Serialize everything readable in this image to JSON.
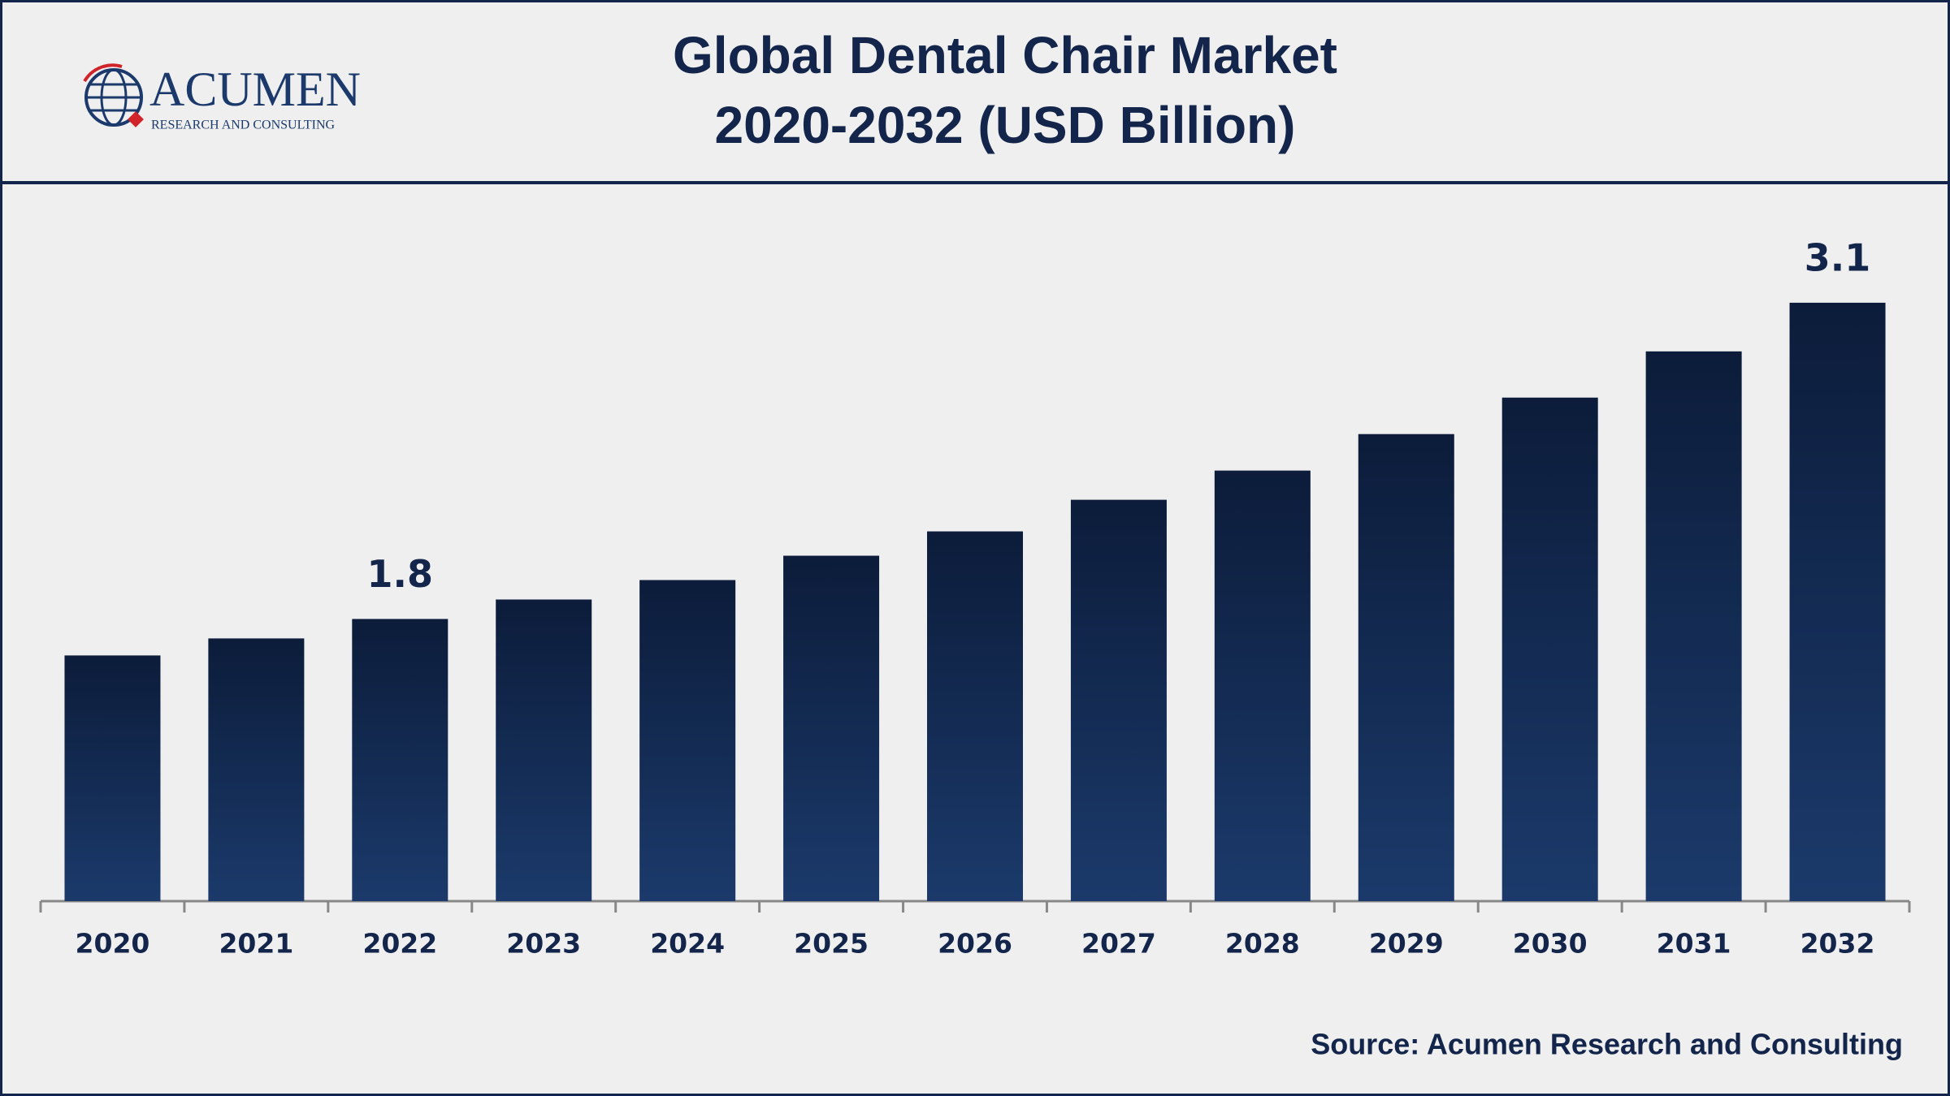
{
  "logo": {
    "name": "ACUMEN",
    "tagline": "RESEARCH AND CONSULTING"
  },
  "chart_data": {
    "type": "bar",
    "title": "Global Dental Chair Market",
    "subtitle": "2020-2032 (USD Billion)",
    "categories": [
      "2020",
      "2021",
      "2022",
      "2023",
      "2024",
      "2025",
      "2026",
      "2027",
      "2028",
      "2029",
      "2030",
      "2031",
      "2032"
    ],
    "values": [
      1.65,
      1.72,
      1.8,
      1.88,
      1.96,
      2.06,
      2.16,
      2.29,
      2.41,
      2.56,
      2.71,
      2.9,
      3.1
    ],
    "value_labels": [
      null,
      null,
      "1.8",
      null,
      null,
      null,
      null,
      null,
      null,
      null,
      null,
      null,
      "3.1"
    ],
    "color": "#1b3a6b",
    "ylim": [
      0.64,
      3.4
    ],
    "source": "Source: Acumen Research and Consulting"
  }
}
